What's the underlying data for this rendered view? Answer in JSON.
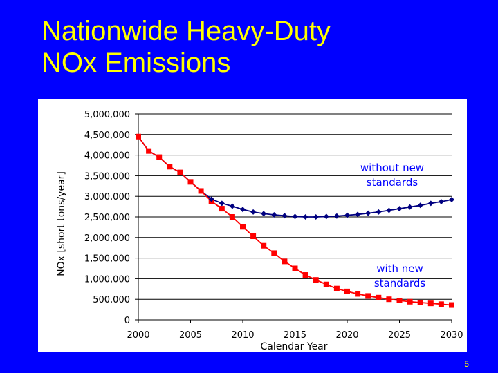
{
  "slide": {
    "title": "Nationwide Heavy-Duty\nNOx Emissions",
    "page_number": "5"
  },
  "colors": {
    "background": "#0000ff",
    "title": "#ffff00",
    "series_without": "#000080",
    "series_with": "#ff0000",
    "annotation": "#0000ff"
  },
  "chart_data": {
    "type": "line",
    "xlabel": "Calendar Year",
    "ylabel": "NOx [short tons/year]",
    "xlim": [
      2000,
      2030
    ],
    "ylim": [
      0,
      5000000
    ],
    "grid": "horizontal",
    "legend": "none",
    "x_ticks": [
      2000,
      2005,
      2010,
      2015,
      2020,
      2025,
      2030
    ],
    "x_tick_labels": [
      "2000",
      "2005",
      "2010",
      "2015",
      "2020",
      "2025",
      "2030"
    ],
    "y_ticks": [
      0,
      500000,
      1000000,
      1500000,
      2000000,
      2500000,
      3000000,
      3500000,
      4000000,
      4500000,
      5000000
    ],
    "y_tick_labels": [
      "0",
      "500,000",
      "1,000,000",
      "1,500,000",
      "2,000,000",
      "2,500,000",
      "3,000,000",
      "3,500,000",
      "4,000,000",
      "4,500,000",
      "5,000,000"
    ],
    "x": [
      2000,
      2001,
      2002,
      2003,
      2004,
      2005,
      2006,
      2007,
      2008,
      2009,
      2010,
      2011,
      2012,
      2013,
      2014,
      2015,
      2016,
      2017,
      2018,
      2019,
      2020,
      2021,
      2022,
      2023,
      2024,
      2025,
      2026,
      2027,
      2028,
      2029,
      2030
    ],
    "series": [
      {
        "name": "without new standards",
        "marker": "diamond",
        "values": [
          4450000,
          4100000,
          3950000,
          3720000,
          3580000,
          3350000,
          3130000,
          2930000,
          2830000,
          2760000,
          2680000,
          2620000,
          2580000,
          2550000,
          2530000,
          2510000,
          2500000,
          2500000,
          2510000,
          2520000,
          2540000,
          2560000,
          2590000,
          2620000,
          2660000,
          2700000,
          2740000,
          2780000,
          2830000,
          2870000,
          2920000
        ]
      },
      {
        "name": "with new standards",
        "marker": "square",
        "values": [
          4450000,
          4100000,
          3950000,
          3720000,
          3580000,
          3350000,
          3130000,
          2880000,
          2700000,
          2500000,
          2260000,
          2030000,
          1800000,
          1620000,
          1420000,
          1250000,
          1090000,
          970000,
          860000,
          760000,
          690000,
          630000,
          580000,
          540000,
          500000,
          470000,
          440000,
          420000,
          400000,
          380000,
          360000
        ]
      }
    ],
    "annotations": [
      {
        "text": "without new\nstandards",
        "series": "without new standards"
      },
      {
        "text": "with new\nstandards",
        "series": "with new standards"
      }
    ]
  }
}
